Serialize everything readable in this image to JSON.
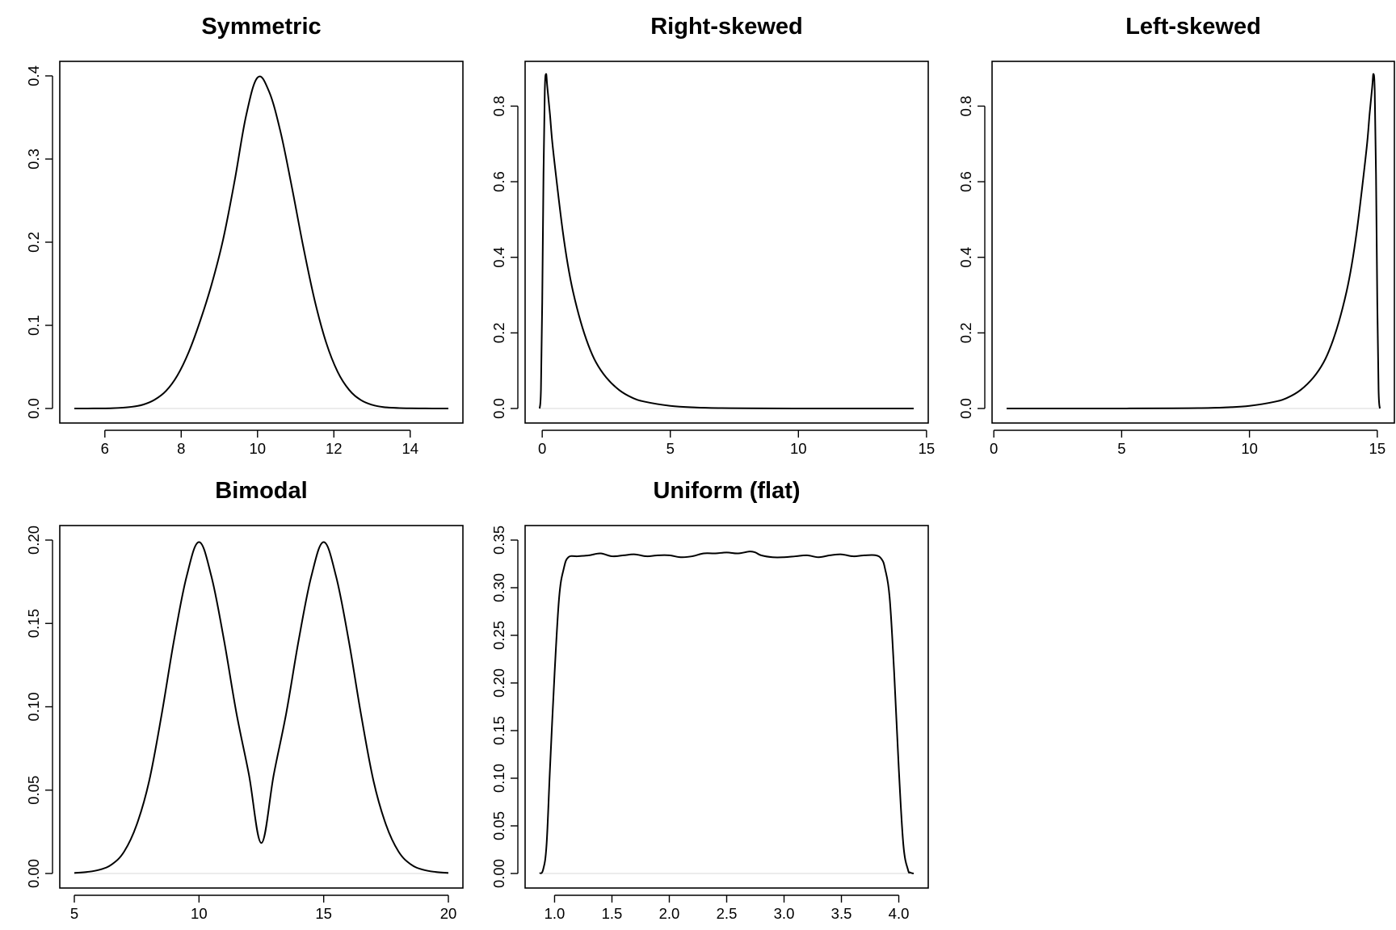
{
  "chart_data": [
    {
      "type": "line",
      "title": "Symmetric",
      "xlabel": "",
      "ylabel": "",
      "xlim": [
        5.2,
        15.0
      ],
      "ylim": [
        0,
        0.4
      ],
      "xticks": [
        6,
        8,
        10,
        12,
        14
      ],
      "xtick_labels": [
        "6",
        "8",
        "10",
        "12",
        "14"
      ],
      "yticks": [
        0,
        0.1,
        0.2,
        0.3,
        0.4
      ],
      "ytick_labels": [
        "0.0",
        "0.1",
        "0.2",
        "0.3",
        "0.4"
      ],
      "x": [
        5.2,
        5.7,
        6.2,
        6.7,
        7.0,
        7.3,
        7.6,
        7.9,
        8.2,
        8.5,
        8.8,
        9.1,
        9.4,
        9.7,
        10.0,
        10.3,
        10.6,
        10.9,
        11.2,
        11.5,
        11.8,
        12.1,
        12.4,
        12.7,
        13.0,
        13.3,
        13.8,
        14.4,
        15.0
      ],
      "y": [
        0.0,
        0.0001,
        0.0004,
        0.002,
        0.0046,
        0.0104,
        0.021,
        0.0397,
        0.0681,
        0.1057,
        0.1497,
        0.2036,
        0.2738,
        0.352,
        0.398,
        0.3814,
        0.3332,
        0.2661,
        0.1942,
        0.1295,
        0.079,
        0.044,
        0.0224,
        0.0104,
        0.0044,
        0.0017,
        0.0004,
        0.0001,
        0.0
      ]
    },
    {
      "type": "line",
      "title": "Right-skewed",
      "xlabel": "",
      "ylabel": "",
      "xlim": [
        -0.1,
        14.5
      ],
      "ylim": [
        0,
        0.88
      ],
      "xticks": [
        0,
        5,
        10,
        15
      ],
      "xtick_labels": [
        "0",
        "5",
        "10",
        "15"
      ],
      "yticks": [
        0,
        0.2,
        0.4,
        0.6,
        0.8
      ],
      "ytick_labels": [
        "0.0",
        "0.2",
        "0.4",
        "0.6",
        "0.8"
      ],
      "x": [
        -0.1,
        -0.05,
        0.0,
        0.05,
        0.1,
        0.15,
        0.2,
        0.3,
        0.4,
        0.6,
        0.8,
        1.0,
        1.2,
        1.5,
        1.8,
        2.1,
        2.5,
        3.0,
        3.5,
        4.0,
        5.0,
        6.0,
        7.0,
        8.0,
        10.0,
        12.0,
        14.5
      ],
      "y": [
        0.0,
        0.05,
        0.28,
        0.62,
        0.84,
        0.885,
        0.85,
        0.78,
        0.7,
        0.58,
        0.47,
        0.38,
        0.31,
        0.23,
        0.168,
        0.122,
        0.082,
        0.049,
        0.029,
        0.018,
        0.007,
        0.0027,
        0.001,
        0.0004,
        0.0001,
        0.0,
        0.0
      ]
    },
    {
      "type": "line",
      "title": "Left-skewed",
      "xlabel": "",
      "ylabel": "",
      "xlim": [
        0.5,
        15.1
      ],
      "ylim": [
        0,
        0.88
      ],
      "xticks": [
        0,
        5,
        10,
        15
      ],
      "xtick_labels": [
        "0",
        "5",
        "10",
        "15"
      ],
      "yticks": [
        0,
        0.2,
        0.4,
        0.6,
        0.8
      ],
      "ytick_labels": [
        "0.0",
        "0.2",
        "0.4",
        "0.6",
        "0.8"
      ],
      "x": [
        0.5,
        3.0,
        5.0,
        7.0,
        8.0,
        9.0,
        10.0,
        11.0,
        11.5,
        12.0,
        12.5,
        12.9,
        13.2,
        13.5,
        13.8,
        14.0,
        14.2,
        14.4,
        14.6,
        14.7,
        14.8,
        14.85,
        14.9,
        14.95,
        15.0,
        15.05,
        15.1
      ],
      "y": [
        0.0,
        0.0,
        0.0001,
        0.0004,
        0.001,
        0.0027,
        0.007,
        0.018,
        0.029,
        0.049,
        0.082,
        0.122,
        0.168,
        0.23,
        0.31,
        0.38,
        0.47,
        0.58,
        0.7,
        0.78,
        0.85,
        0.885,
        0.84,
        0.62,
        0.28,
        0.05,
        0.0
      ]
    },
    {
      "type": "line",
      "title": "Bimodal",
      "xlabel": "",
      "ylabel": "",
      "xlim": [
        5.0,
        20.0
      ],
      "ylim": [
        0,
        0.2
      ],
      "xticks": [
        5,
        10,
        15,
        20
      ],
      "xtick_labels": [
        "5",
        "10",
        "15",
        "20"
      ],
      "yticks": [
        0,
        0.05,
        0.1,
        0.15,
        0.2
      ],
      "ytick_labels": [
        "0.00",
        "0.05",
        "0.10",
        "0.15",
        "0.20"
      ],
      "x": [
        5.0,
        5.5,
        6.0,
        6.5,
        7.0,
        7.5,
        8.0,
        8.5,
        9.0,
        9.5,
        10.0,
        10.5,
        11.0,
        11.5,
        12.0,
        12.5,
        13.0,
        13.5,
        14.0,
        14.5,
        15.0,
        15.5,
        16.0,
        16.5,
        17.0,
        17.5,
        18.0,
        18.5,
        19.0,
        19.5,
        20.0
      ],
      "y": [
        0.0003,
        0.0009,
        0.0022,
        0.0054,
        0.0132,
        0.0292,
        0.0554,
        0.0952,
        0.1401,
        0.178,
        0.1988,
        0.178,
        0.1402,
        0.0963,
        0.0595,
        0.0183,
        0.0595,
        0.0963,
        0.1402,
        0.178,
        0.1988,
        0.178,
        0.1401,
        0.0952,
        0.0554,
        0.0292,
        0.0132,
        0.0054,
        0.0022,
        0.0009,
        0.0003
      ]
    },
    {
      "type": "line",
      "title": "Uniform (flat)",
      "xlabel": "",
      "ylabel": "",
      "xlim": [
        0.87,
        4.13
      ],
      "ylim": [
        0,
        0.35
      ],
      "xticks": [
        1.0,
        1.5,
        2.0,
        2.5,
        3.0,
        3.5,
        4.0
      ],
      "xtick_labels": [
        "1.0",
        "1.5",
        "2.0",
        "2.5",
        "3.0",
        "3.5",
        "4.0"
      ],
      "yticks": [
        0,
        0.05,
        0.1,
        0.15,
        0.2,
        0.25,
        0.3,
        0.35
      ],
      "ytick_labels": [
        "0.00",
        "0.05",
        "0.10",
        "0.15",
        "0.20",
        "0.25",
        "0.30",
        "0.35"
      ],
      "x": [
        0.87,
        0.9,
        0.93,
        0.96,
        1.0,
        1.04,
        1.08,
        1.12,
        1.2,
        1.3,
        1.4,
        1.5,
        1.6,
        1.7,
        1.8,
        1.9,
        2.0,
        2.1,
        2.2,
        2.3,
        2.4,
        2.5,
        2.6,
        2.7,
        2.75,
        2.8,
        2.9,
        3.0,
        3.1,
        3.2,
        3.3,
        3.4,
        3.5,
        3.6,
        3.7,
        3.8,
        3.85,
        3.88,
        3.92,
        3.96,
        4.0,
        4.04,
        4.08,
        4.1,
        4.13
      ],
      "y": [
        0.0,
        0.004,
        0.03,
        0.11,
        0.21,
        0.29,
        0.32,
        0.332,
        0.333,
        0.334,
        0.336,
        0.333,
        0.334,
        0.335,
        0.333,
        0.334,
        0.334,
        0.332,
        0.333,
        0.336,
        0.336,
        0.337,
        0.336,
        0.338,
        0.337,
        0.334,
        0.332,
        0.332,
        0.333,
        0.334,
        0.332,
        0.334,
        0.335,
        0.333,
        0.334,
        0.334,
        0.33,
        0.32,
        0.29,
        0.21,
        0.11,
        0.03,
        0.004,
        0.001,
        0.0
      ]
    }
  ]
}
